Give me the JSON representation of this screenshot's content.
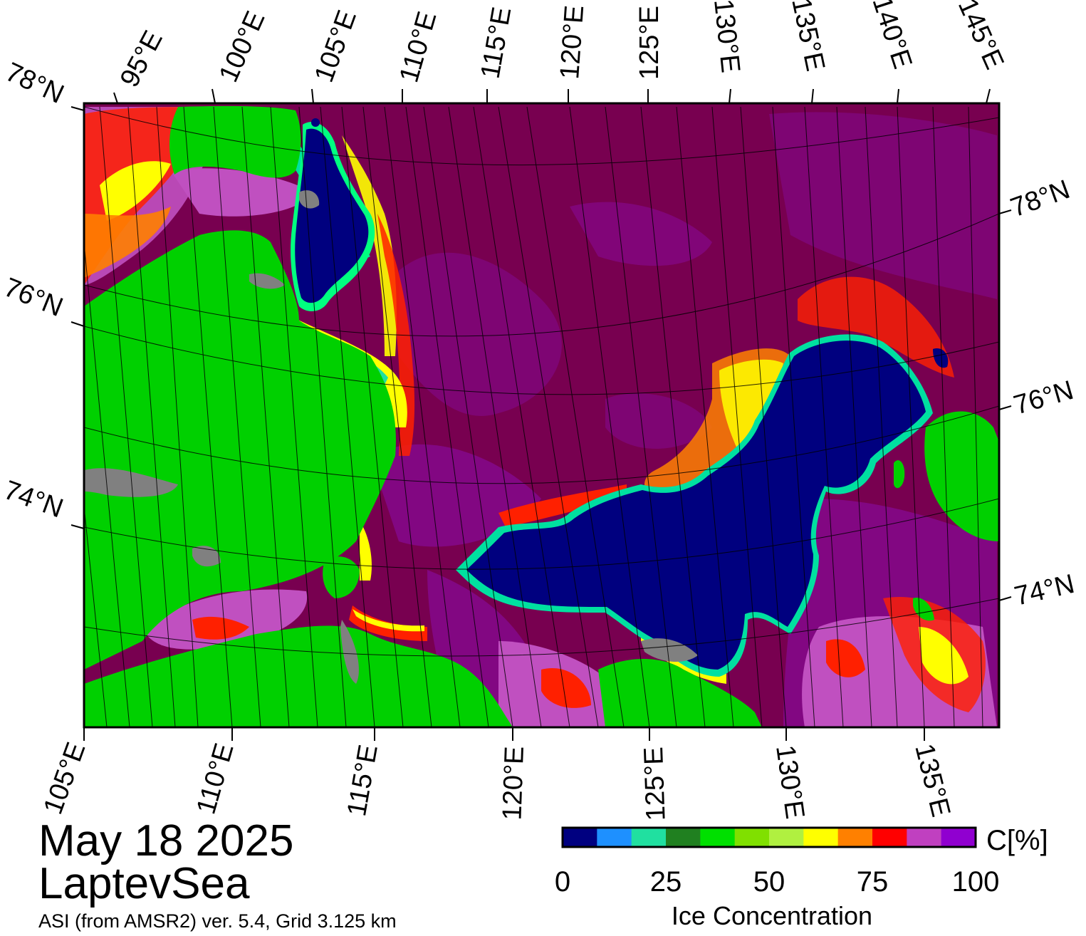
{
  "title": {
    "date": "May 18 2025",
    "region": "LaptevSea",
    "source": "ASI (from AMSR2) ver. 5.4,  Grid 3.125 km"
  },
  "map": {
    "top_lon_labels": [
      "95°E",
      "100°E",
      "105°E",
      "110°E",
      "115°E",
      "120°E",
      "125°E",
      "130°E",
      "135°E",
      "140°E",
      "145°E"
    ],
    "bottom_lon_labels": [
      "105°E",
      "110°E",
      "115°E",
      "120°E",
      "125°E",
      "130°E",
      "135°E"
    ],
    "left_lat_labels": [
      "78°N",
      "76°N",
      "74°N"
    ],
    "right_lat_labels": [
      "78°N",
      "76°N",
      "74°N"
    ],
    "colors": {
      "land": "#00d000",
      "land_ice": "#808080",
      "sea_ice_100": "#780050",
      "open_water": "#00007f"
    }
  },
  "colorbar": {
    "unit": "C[%]",
    "title": "Ice Concentration",
    "ticks": [
      "0",
      "25",
      "50",
      "75",
      "100"
    ],
    "colors": [
      "#000080",
      "#1e90ff",
      "#20e0a0",
      "#208020",
      "#00e000",
      "#80e000",
      "#b0f040",
      "#ffff00",
      "#ff8000",
      "#ff0000",
      "#c040c0",
      "#9000d0"
    ]
  }
}
